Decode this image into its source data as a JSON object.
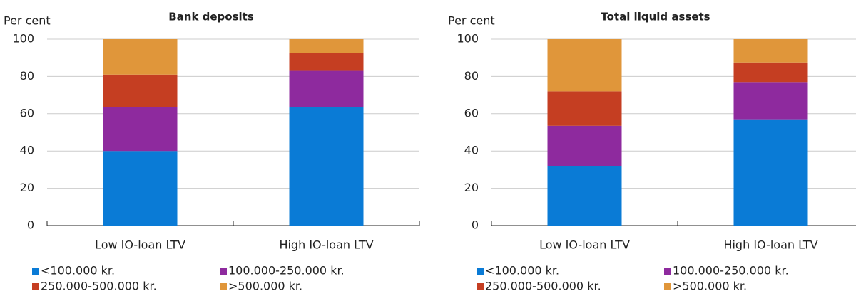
{
  "chart_data": [
    {
      "type": "bar",
      "stacked": true,
      "title": "Bank deposits",
      "y_label": "Per cent",
      "categories": [
        "Low IO-loan LTV",
        "High IO-loan LTV"
      ],
      "series": [
        {
          "name": "<100.000 kr.",
          "color": "#0a7bd6",
          "values": [
            40,
            63.5
          ]
        },
        {
          "name": "100.000-250.000 kr.",
          "color": "#8e2a9e",
          "values": [
            23.5,
            19.5
          ]
        },
        {
          "name": "250.000-500.000 kr.",
          "color": "#c53e22",
          "values": [
            17.5,
            9.5
          ]
        },
        {
          "name": ">500.000 kr.",
          "color": "#e0963a",
          "values": [
            19,
            7.5
          ]
        }
      ],
      "ylim": [
        0,
        100
      ],
      "yticks": [
        0,
        20,
        40,
        60,
        80,
        100
      ],
      "grid": true
    },
    {
      "type": "bar",
      "stacked": true,
      "title": "Total liquid assets",
      "y_label": "Per cent",
      "categories": [
        "Low IO-loan LTV",
        "High IO-loan LTV"
      ],
      "series": [
        {
          "name": "<100.000 kr.",
          "color": "#0a7bd6",
          "values": [
            32,
            57
          ]
        },
        {
          "name": "100.000-250.000 kr.",
          "color": "#8e2a9e",
          "values": [
            21.5,
            20
          ]
        },
        {
          "name": "250.000-500.000 kr.",
          "color": "#c53e22",
          "values": [
            18.5,
            10.5
          ]
        },
        {
          "name": ">500.000 kr.",
          "color": "#e0963a",
          "values": [
            28,
            12.5
          ]
        }
      ],
      "ylim": [
        0,
        100
      ],
      "yticks": [
        0,
        20,
        40,
        60,
        80,
        100
      ],
      "grid": true
    }
  ]
}
